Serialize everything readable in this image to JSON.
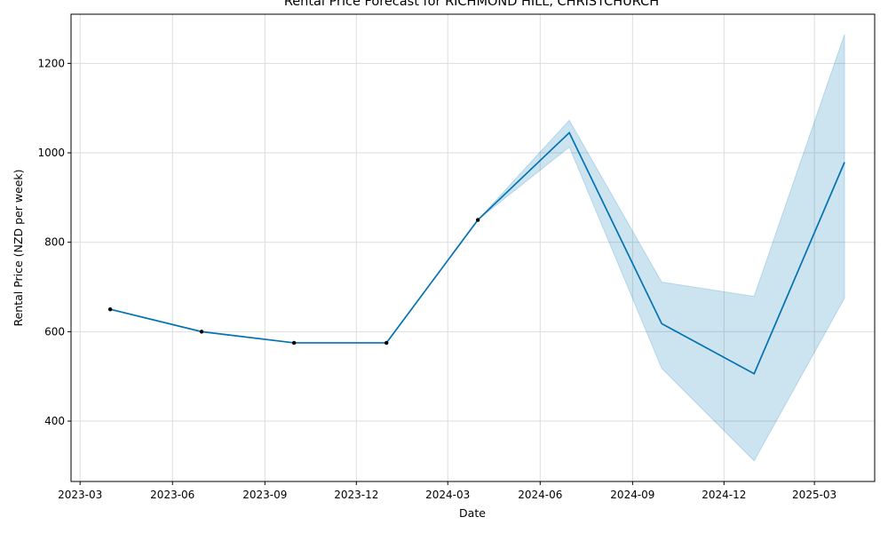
{
  "chart_data": {
    "type": "line",
    "title": "Rental Price Forecast for RICHMOND HILL, CHRISTCHURCH",
    "xlabel": "Date",
    "ylabel": "Rental Price (NZD per week)",
    "xlim": [
      "2023-02-20",
      "2025-04-30"
    ],
    "ylim": [
      265,
      1310
    ],
    "grid": true,
    "x_ticks": [
      "2023-03-01",
      "2023-06-01",
      "2023-09-01",
      "2023-12-01",
      "2024-03-01",
      "2024-06-01",
      "2024-09-01",
      "2024-12-01",
      "2025-03-01"
    ],
    "x_tick_labels": [
      "2023-03",
      "2023-06",
      "2023-09",
      "2023-12",
      "2024-03",
      "2024-06",
      "2024-09",
      "2024-12",
      "2025-03"
    ],
    "y_ticks": [
      400,
      600,
      800,
      1000,
      1200
    ],
    "series": [
      {
        "values": [
          {
            "x": "2023-03-31",
            "y": 650
          },
          {
            "x": "2023-06-30",
            "y": 600
          },
          {
            "x": "2023-09-30",
            "y": 575
          },
          {
            "x": "2023-12-31",
            "y": 575
          },
          {
            "x": "2024-03-31",
            "y": 850
          },
          {
            "x": "2024-06-30",
            "y": 1045
          },
          {
            "x": "2024-09-30",
            "y": 618
          },
          {
            "x": "2024-12-31",
            "y": 506
          },
          {
            "x": "2025-03-31",
            "y": 979
          }
        ]
      }
    ],
    "observed": [
      {
        "x": "2023-03-31",
        "y": 650
      },
      {
        "x": "2023-06-30",
        "y": 600
      },
      {
        "x": "2023-09-30",
        "y": 575
      },
      {
        "x": "2023-12-31",
        "y": 575
      },
      {
        "x": "2024-03-31",
        "y": 850
      }
    ],
    "interval": [
      {
        "x": "2023-03-31",
        "lower": 650,
        "upper": 650
      },
      {
        "x": "2023-06-30",
        "lower": 600,
        "upper": 600
      },
      {
        "x": "2023-09-30",
        "lower": 575,
        "upper": 575
      },
      {
        "x": "2023-12-31",
        "lower": 575,
        "upper": 575
      },
      {
        "x": "2024-03-31",
        "lower": 850,
        "upper": 850
      },
      {
        "x": "2024-06-30",
        "lower": 1013,
        "upper": 1073
      },
      {
        "x": "2024-09-30",
        "lower": 518,
        "upper": 711
      },
      {
        "x": "2024-12-31",
        "lower": 311,
        "upper": 679
      },
      {
        "x": "2025-03-31",
        "lower": 675,
        "upper": 1265
      }
    ],
    "colors": {
      "line": "#0072b2",
      "band": "#0072b2",
      "points": "#000000"
    }
  }
}
